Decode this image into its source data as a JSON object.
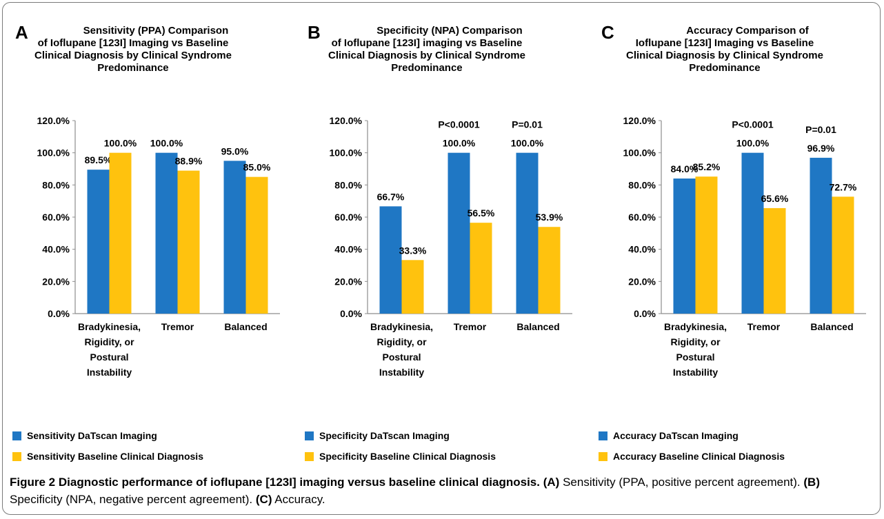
{
  "panels": [
    {
      "letter": "A",
      "title_lines": [
        "Sensitivity (PPA) Comparison",
        "of Ioflupane [123I] Imaging vs Baseline",
        "Clinical Diagnosis by Clinical Syndrome",
        "Predominance"
      ],
      "legend": [
        "Sensitivity DaTscan Imaging",
        "Sensitivity Baseline Clinical Diagnosis"
      ],
      "annotations": [
        "",
        "",
        ""
      ]
    },
    {
      "letter": "B",
      "title_lines": [
        "Specificity (NPA) Comparison",
        "of Ioflupane [123I] imaging vs Baseline",
        "Clinical Diagnosis by Clinical Syndrome",
        "Predominance"
      ],
      "legend": [
        "Specificity DaTscan Imaging",
        "Specificity Baseline Clinical Diagnosis"
      ],
      "annotations": [
        "",
        "P<0.0001",
        "P=0.01"
      ]
    },
    {
      "letter": "C",
      "title_lines": [
        "Accuracy Comparison of",
        "Ioflupane [123I] Imaging vs Baseline",
        "Clinical Diagnosis by Clinical Syndrome",
        "Predominance"
      ],
      "legend": [
        "Accuracy DaTscan Imaging",
        "Accuracy Baseline Clinical Diagnosis"
      ],
      "annotations": [
        "",
        "P<0.0001",
        "P=0.01"
      ]
    }
  ],
  "chart_data": [
    {
      "type": "bar",
      "title": "Sensitivity (PPA) Comparison of Ioflupane [123I] Imaging vs Baseline Clinical Diagnosis by Clinical Syndrome Predominance",
      "categories": [
        "Bradykinesia, Rigidity, or Postural Instability",
        "Tremor",
        "Balanced"
      ],
      "category_lines": [
        [
          "Bradykinesia,",
          "Rigidity, or",
          "Postural",
          "Instability"
        ],
        [
          "Tremor"
        ],
        [
          "Balanced"
        ]
      ],
      "series": [
        {
          "name": "Sensitivity DaTscan Imaging",
          "values": [
            89.5,
            100.0,
            95.0
          ],
          "labels": [
            "89.5%",
            "100.0%",
            "95.0%"
          ],
          "color": "#1f77c4"
        },
        {
          "name": "Sensitivity Baseline Clinical Diagnosis",
          "values": [
            100.0,
            88.9,
            85.0
          ],
          "labels": [
            "100.0%",
            "88.9%",
            "85.0%"
          ],
          "color": "#ffc20e"
        }
      ],
      "yticks": [
        "0.0%",
        "20.0%",
        "40.0%",
        "60.0%",
        "80.0%",
        "100.0%",
        "120.0%"
      ],
      "ylim": [
        0,
        120
      ],
      "grid": false,
      "legend_position": "bottom"
    },
    {
      "type": "bar",
      "title": "Specificity (NPA) Comparison of Ioflupane [123I] imaging vs Baseline Clinical Diagnosis by Clinical Syndrome Predominance",
      "categories": [
        "Bradykinesia, Rigidity, or Postural Instability",
        "Tremor",
        "Balanced"
      ],
      "category_lines": [
        [
          "Bradykinesia,",
          "Rigidity, or",
          "Postural",
          "Instability"
        ],
        [
          "Tremor"
        ],
        [
          "Balanced"
        ]
      ],
      "series": [
        {
          "name": "Specificity DaTscan Imaging",
          "values": [
            66.7,
            100.0,
            100.0
          ],
          "labels": [
            "66.7%",
            "100.0%",
            "100.0%"
          ],
          "color": "#1f77c4"
        },
        {
          "name": "Specificity Baseline Clinical Diagnosis",
          "values": [
            33.3,
            56.5,
            53.9
          ],
          "labels": [
            "33.3%",
            "56.5%",
            "53.9%"
          ],
          "color": "#ffc20e"
        }
      ],
      "yticks": [
        "0.0%",
        "20.0%",
        "40.0%",
        "60.0%",
        "80.0%",
        "100.0%",
        "120.0%"
      ],
      "ylim": [
        0,
        120
      ],
      "grid": false,
      "legend_position": "bottom"
    },
    {
      "type": "bar",
      "title": "Accuracy Comparison of Ioflupane [123I] Imaging vs Baseline Clinical Diagnosis by Clinical Syndrome Predominance",
      "categories": [
        "Bradykinesia, Rigidity, or Postural Instability",
        "Tremor",
        "Balanced"
      ],
      "category_lines": [
        [
          "Bradykinesia,",
          "Rigidity, or",
          "Postural",
          "Instability"
        ],
        [
          "Tremor"
        ],
        [
          "Balanced"
        ]
      ],
      "series": [
        {
          "name": "Accuracy DaTscan Imaging",
          "values": [
            84.0,
            100.0,
            96.9
          ],
          "labels": [
            "84.0%",
            "100.0%",
            "96.9%"
          ],
          "color": "#1f77c4"
        },
        {
          "name": "Accuracy Baseline Clinical Diagnosis",
          "values": [
            85.2,
            65.6,
            72.7
          ],
          "labels": [
            "85.2%",
            "65.6%",
            "72.7%"
          ],
          "color": "#ffc20e"
        }
      ],
      "yticks": [
        "0.0%",
        "20.0%",
        "40.0%",
        "60.0%",
        "80.0%",
        "100.0%",
        "120.0%"
      ],
      "ylim": [
        0,
        120
      ],
      "grid": false,
      "legend_position": "bottom"
    }
  ],
  "caption": {
    "figure_label": "Figure 2",
    "bold_text": "Diagnostic performance of ioflupane [123I] imaging versus baseline clinical diagnosis.",
    "parts": [
      {
        "tag": "(A)",
        "text": "Sensitivity (PPA, positive percent agreement)."
      },
      {
        "tag": "(B)",
        "text": "Specificity (NPA, negative percent agreement)."
      },
      {
        "tag": "(C)",
        "text": "Accuracy."
      }
    ]
  },
  "colors": {
    "datscan": "#1f77c4",
    "baseline": "#ffc20e",
    "axis": "#8c8c8c",
    "frame": "#7a7a7a"
  }
}
